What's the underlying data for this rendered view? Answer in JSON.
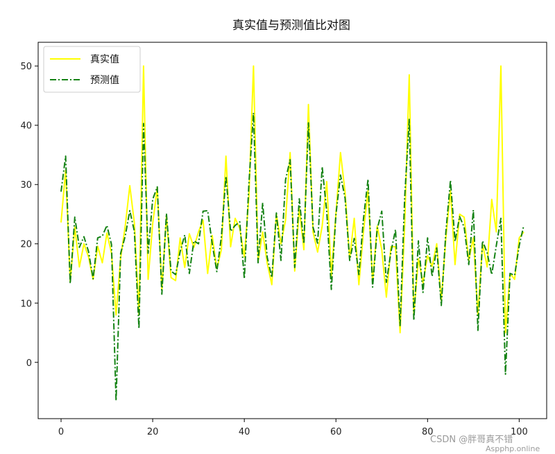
{
  "chart_data": {
    "type": "line",
    "title": "真实值与预测值比对图",
    "xlabel": "",
    "ylabel": "",
    "xlim": [
      -5,
      106
    ],
    "ylim": [
      -9.5,
      54
    ],
    "x_ticks": [
      0,
      20,
      40,
      60,
      80,
      100
    ],
    "y_ticks": [
      0,
      10,
      20,
      30,
      40,
      50
    ],
    "grid": false,
    "legend_position": "top-left",
    "x": [
      0,
      1,
      2,
      3,
      4,
      5,
      6,
      7,
      8,
      9,
      10,
      11,
      12,
      13,
      14,
      15,
      16,
      17,
      18,
      19,
      20,
      21,
      22,
      23,
      24,
      25,
      26,
      27,
      28,
      29,
      30,
      31,
      32,
      33,
      34,
      35,
      36,
      37,
      38,
      39,
      40,
      41,
      42,
      43,
      44,
      45,
      46,
      47,
      48,
      49,
      50,
      51,
      52,
      53,
      54,
      55,
      56,
      57,
      58,
      59,
      60,
      61,
      62,
      63,
      64,
      65,
      66,
      67,
      68,
      69,
      70,
      71,
      72,
      73,
      74,
      75,
      76,
      77,
      78,
      79,
      80,
      81,
      82,
      83,
      84,
      85,
      86,
      87,
      88,
      89,
      90,
      91,
      92,
      93,
      94,
      95,
      96,
      97,
      98,
      99,
      100,
      101
    ],
    "series": [
      {
        "name": "真实值",
        "color": "#ffff00",
        "style": "solid",
        "values": [
          23.6,
          32.4,
          13.6,
          22.8,
          16.1,
          20.0,
          17.8,
          14.0,
          19.6,
          16.8,
          21.8,
          18.4,
          8.0,
          17.6,
          23.0,
          29.8,
          23.5,
          8.0,
          50.0,
          14.0,
          23.4,
          29.5,
          12.3,
          24.8,
          14.3,
          13.8,
          21.0,
          16.0,
          21.7,
          19.4,
          22.0,
          24.0,
          15.0,
          21.4,
          15.8,
          19.0,
          34.8,
          19.5,
          24.3,
          22.6,
          17.8,
          28.0,
          50.0,
          17.0,
          22.0,
          16.7,
          13.1,
          25.0,
          20.0,
          24.0,
          35.4,
          15.4,
          26.0,
          19.0,
          43.5,
          22.0,
          18.6,
          23.0,
          30.5,
          14.6,
          25.0,
          35.4,
          28.7,
          17.5,
          24.3,
          13.1,
          22.0,
          29.0,
          13.5,
          23.0,
          19.0,
          11.0,
          19.5,
          19.5,
          5.0,
          23.1,
          48.5,
          8.0,
          17.5,
          13.4,
          18.0,
          16.2,
          20.0,
          10.4,
          21.0,
          29.0,
          16.5,
          25.0,
          24.5,
          17.2,
          21.0,
          8.0,
          20.0,
          16.1,
          27.5,
          22.0,
          50.0,
          5.0,
          15.0,
          14.0,
          21.0,
          22.0
        ]
      },
      {
        "name": "预测值",
        "color": "#148214",
        "style": "dashdot",
        "values": [
          28.8,
          34.8,
          13.3,
          24.5,
          19.4,
          21.2,
          18.7,
          14.1,
          21.0,
          21.3,
          23.1,
          19.9,
          -6.5,
          18.4,
          21.3,
          25.6,
          22.1,
          5.7,
          40.3,
          18.4,
          27.5,
          29.6,
          11.5,
          25.1,
          15.4,
          14.8,
          18.7,
          21.5,
          15.0,
          20.5,
          20.0,
          25.5,
          25.6,
          20.0,
          15.3,
          21.2,
          31.4,
          22.1,
          23.1,
          23.7,
          14.1,
          30.2,
          42.1,
          16.8,
          26.9,
          17.7,
          14.3,
          25.2,
          17.2,
          30.8,
          34.2,
          16.0,
          27.6,
          20.0,
          40.4,
          22.8,
          20.1,
          33.0,
          25.4,
          12.3,
          24.9,
          31.6,
          27.7,
          17.2,
          20.9,
          14.8,
          24.2,
          30.9,
          12.7,
          22.5,
          25.5,
          13.5,
          18.6,
          22.4,
          6.2,
          27.8,
          41.0,
          7.1,
          20.5,
          11.8,
          21.0,
          14.5,
          19.3,
          9.6,
          22.0,
          30.7,
          20.4,
          24.6,
          22.8,
          16.5,
          25.7,
          5.4,
          20.5,
          18.5,
          14.8,
          19.7,
          24.3,
          -2.0,
          15.0,
          14.7,
          19.7,
          23.1
        ]
      }
    ]
  },
  "watermark": "CSDN @胖哥真不错",
  "watermark_sub": "Aspphp.online"
}
